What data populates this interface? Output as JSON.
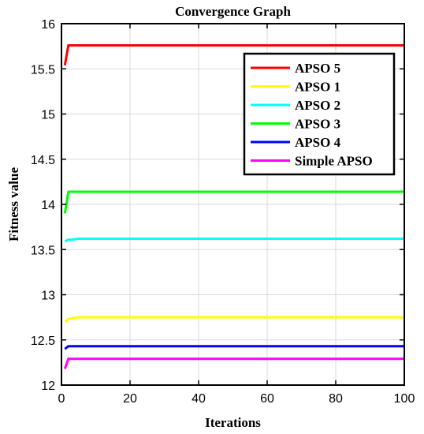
{
  "chart_data": {
    "type": "line",
    "title": "Convergence Graph",
    "xlabel": "Iterations",
    "ylabel": "Fitness value",
    "xlim": [
      0,
      100
    ],
    "ylim": [
      12,
      16
    ],
    "xticks": [
      "0",
      "20",
      "40",
      "60",
      "80",
      "100"
    ],
    "yticks": [
      "12",
      "12.5",
      "13",
      "13.5",
      "14",
      "14.5",
      "15",
      "15.5",
      "16"
    ],
    "grid": true,
    "legend_position": "top-right",
    "series": [
      {
        "name": "APSO 5",
        "color": "#ff0000",
        "x": [
          1,
          2,
          3,
          100
        ],
        "y": [
          15.54,
          15.76,
          15.76,
          15.76
        ]
      },
      {
        "name": "APSO 1",
        "color": "#ffff00",
        "x": [
          1,
          2,
          3,
          5,
          100
        ],
        "y": [
          12.7,
          12.73,
          12.74,
          12.75,
          12.75
        ]
      },
      {
        "name": "APSO 2",
        "color": "#00ffff",
        "x": [
          1,
          2,
          3,
          5,
          100
        ],
        "y": [
          13.59,
          13.61,
          13.61,
          13.62,
          13.62
        ]
      },
      {
        "name": "APSO 3",
        "color": "#00ff00",
        "x": [
          1,
          2,
          3,
          100
        ],
        "y": [
          13.9,
          14.14,
          14.14,
          14.14
        ]
      },
      {
        "name": "APSO 4",
        "color": "#0000ff",
        "x": [
          1,
          2,
          3,
          100
        ],
        "y": [
          12.4,
          12.43,
          12.43,
          12.43
        ]
      },
      {
        "name": "Simple APSO",
        "color": "#ff00ff",
        "x": [
          1,
          2,
          3,
          100
        ],
        "y": [
          12.18,
          12.29,
          12.29,
          12.29
        ]
      }
    ]
  }
}
